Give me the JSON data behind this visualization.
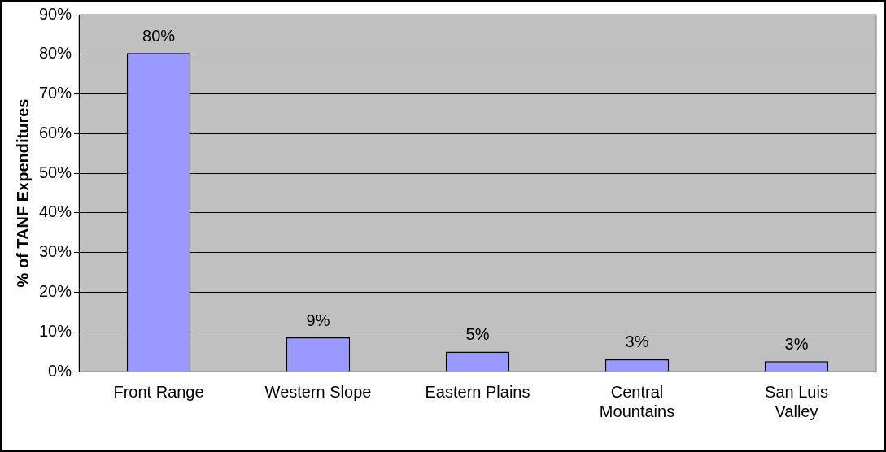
{
  "chart_data": {
    "type": "bar",
    "ylabel": "% of TANF Expenditures",
    "categories": [
      "Front Range",
      "Western Slope",
      "Eastern Plains",
      "Central Mountains",
      "San Luis Valley"
    ],
    "values": [
      80.3,
      8.6,
      5,
      3.1,
      2.6
    ],
    "value_labels": [
      "80%",
      "9%",
      "5%",
      "3%",
      "3%"
    ],
    "color": "#9999ff",
    "ylim": [
      0,
      90
    ],
    "yticks": [
      {
        "value": 0,
        "label": "0%"
      },
      {
        "value": 10,
        "label": "10%"
      },
      {
        "value": 20,
        "label": "20%"
      },
      {
        "value": 30,
        "label": "30%"
      },
      {
        "value": 40,
        "label": "40%"
      },
      {
        "value": 50,
        "label": "50%"
      },
      {
        "value": 60,
        "label": "60%"
      },
      {
        "value": 70,
        "label": "70%"
      },
      {
        "value": 80,
        "label": "80%"
      },
      {
        "value": 90,
        "label": "90%"
      }
    ],
    "grid": "y",
    "legend": false
  }
}
